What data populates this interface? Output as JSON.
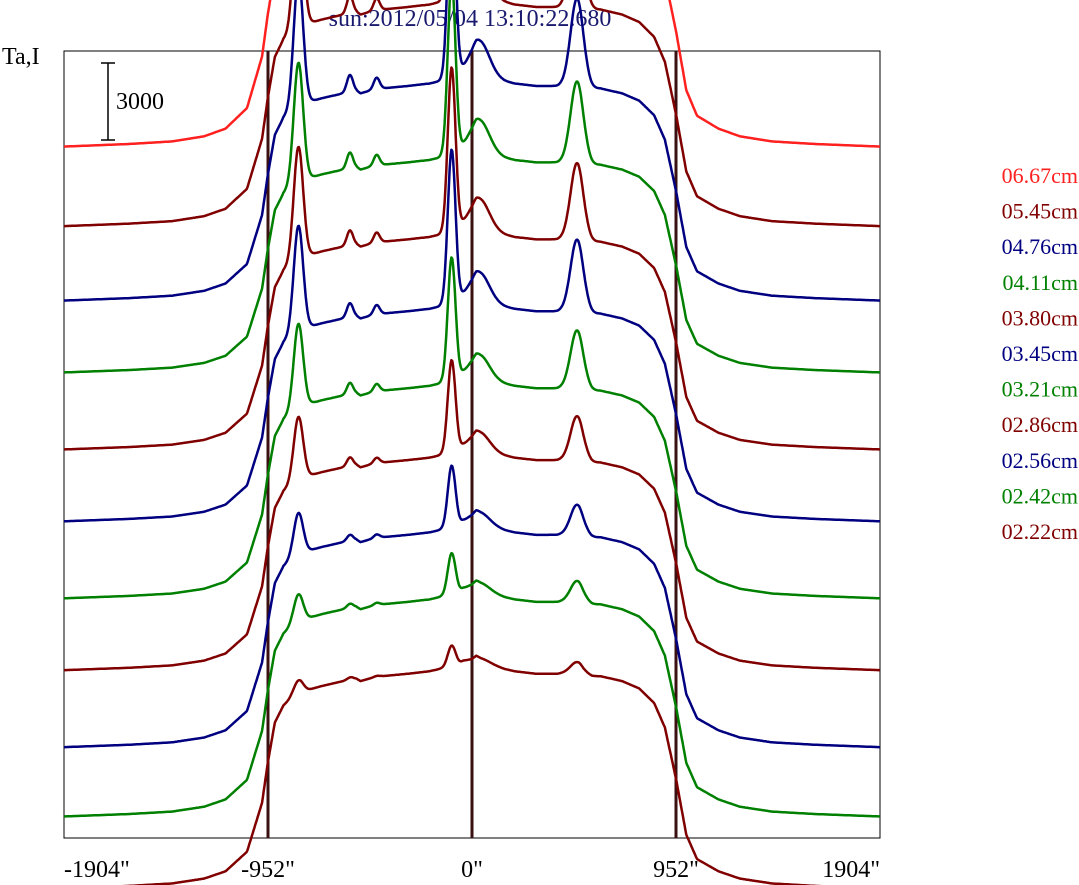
{
  "chart_data": {
    "type": "line",
    "title": "sun:2012/05/04 13:10:22.680",
    "ylabel": "Ta,I",
    "xlabel": "",
    "x_ticks": [
      "-1904\"",
      "-952\"",
      "0\"",
      "952\"",
      "1904\""
    ],
    "x_tick_values": [
      -1904,
      -952,
      0,
      952,
      1904
    ],
    "xlim": [
      -1904,
      1904
    ],
    "vlines": [
      -952,
      0,
      952
    ],
    "scale_bar": {
      "label": "3000",
      "value": 3000
    },
    "grid": false,
    "legend_position": "right",
    "series": [
      {
        "name": "06.67cm",
        "color": "#ff2020",
        "baseline": 26900,
        "amplitude": 1.0,
        "peakScale": 1.0
      },
      {
        "name": "05.45cm",
        "color": "#800000",
        "baseline": 23800,
        "amplitude": 0.97,
        "peakScale": 0.95
      },
      {
        "name": "04.76cm",
        "color": "#000080",
        "baseline": 20900,
        "amplitude": 0.95,
        "peakScale": 0.92
      },
      {
        "name": "04.11cm",
        "color": "#008000",
        "baseline": 18100,
        "amplitude": 0.93,
        "peakScale": 0.85
      },
      {
        "name": "03.80cm",
        "color": "#800000",
        "baseline": 15100,
        "amplitude": 0.93,
        "peakScale": 0.8
      },
      {
        "name": "03.45cm",
        "color": "#000080",
        "baseline": 12300,
        "amplitude": 0.93,
        "peakScale": 0.75
      },
      {
        "name": "03.21cm",
        "color": "#008000",
        "baseline": 9300,
        "amplitude": 0.93,
        "peakScale": 0.6
      },
      {
        "name": "02.86cm",
        "color": "#800000",
        "baseline": 6500,
        "amplitude": 0.93,
        "peakScale": 0.45
      },
      {
        "name": "02.56cm",
        "color": "#000080",
        "baseline": 3500,
        "amplitude": 0.94,
        "peakScale": 0.3
      },
      {
        "name": "02.42cm",
        "color": "#008000",
        "baseline": 800,
        "amplitude": 0.95,
        "peakScale": 0.2
      },
      {
        "name": "02.22cm",
        "color": "#800000",
        "baseline": -2000,
        "amplitude": 0.95,
        "peakScale": 0.1
      }
    ],
    "profile": {
      "x": [
        -1904,
        -1600,
        -1400,
        -1250,
        -1150,
        -1050,
        -980,
        -952,
        -920,
        -880,
        -840,
        -800,
        -770,
        -740,
        -700,
        -650,
        -600,
        -560,
        -540,
        -520,
        -480,
        -420,
        -300,
        -200,
        -150,
        -100,
        -60,
        -40,
        -20,
        0,
        20,
        40,
        80,
        150,
        200,
        300,
        400,
        480,
        500,
        520,
        560,
        600,
        700,
        780,
        850,
        900,
        952,
        1000,
        1050,
        1150,
        1250,
        1400,
        1600,
        1904
      ],
      "y": [
        0,
        100,
        200,
        400,
        700,
        1500,
        3500,
        5200,
        6800,
        7500,
        7800,
        8000,
        8100,
        8200,
        8300,
        8400,
        8500,
        8600,
        8600,
        8500,
        8600,
        8700,
        8800,
        8900,
        9000,
        9100,
        9200,
        9300,
        9300,
        9300,
        9400,
        9300,
        9200,
        9000,
        8900,
        8800,
        8800,
        8900,
        8900,
        8800,
        8700,
        8700,
        8500,
        8200,
        7600,
        6600,
        4500,
        2200,
        1200,
        700,
        400,
        200,
        100,
        0
      ]
    },
    "peaks": [
      {
        "x": -810,
        "height": 5500,
        "width": 22
      },
      {
        "x": -570,
        "height": 700,
        "width": 14
      },
      {
        "x": -445,
        "height": 500,
        "width": 14
      },
      {
        "x": -95,
        "height": 8000,
        "width": 18
      },
      {
        "x": 35,
        "height": 1400,
        "width": 45
      },
      {
        "x": 490,
        "height": 3600,
        "width": 30
      }
    ]
  }
}
